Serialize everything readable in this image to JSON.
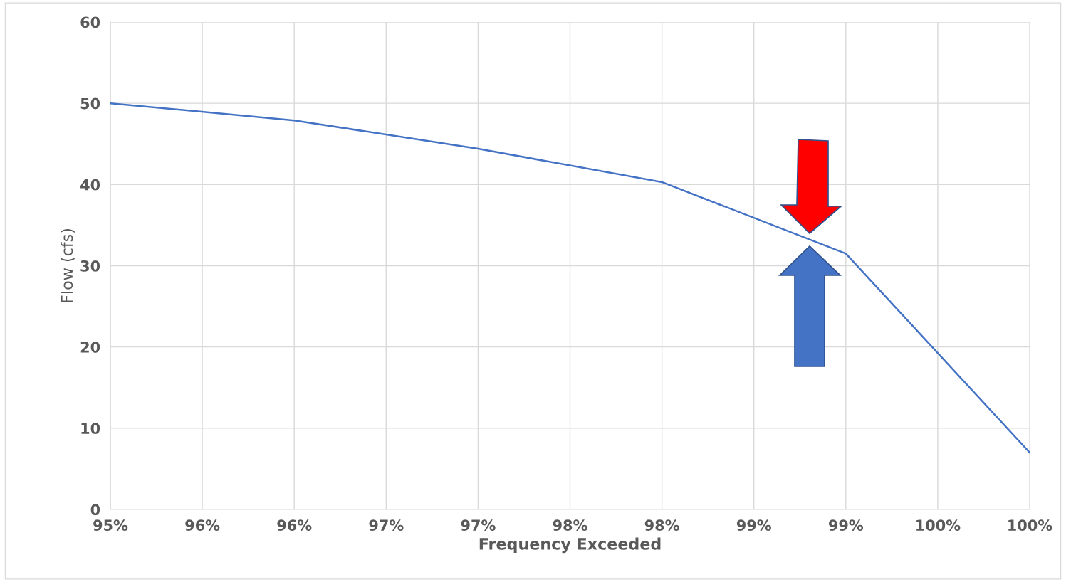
{
  "chart_data": {
    "type": "line",
    "xlabel": "Frequency Exceeded",
    "ylabel": "Flow (cfs)",
    "x": [
      95,
      96,
      97,
      98,
      99,
      100
    ],
    "series": [
      {
        "color": "#4472c4",
        "values": [
          50,
          47.9,
          44.4,
          40.3,
          31.5,
          7.0
        ]
      }
    ],
    "xlim": [
      95,
      100
    ],
    "xticks": [
      {
        "value": 95,
        "label": "95%"
      },
      {
        "value": 95.5,
        "label": "96%"
      },
      {
        "value": 96,
        "label": "96%"
      },
      {
        "value": 96.5,
        "label": "97%"
      },
      {
        "value": 97,
        "label": "97%"
      },
      {
        "value": 97.5,
        "label": "98%"
      },
      {
        "value": 98,
        "label": "98%"
      },
      {
        "value": 98.5,
        "label": "99%"
      },
      {
        "value": 99,
        "label": "99%"
      },
      {
        "value": 99.5,
        "label": "100%"
      },
      {
        "value": 100,
        "label": "100%"
      }
    ],
    "ylim": [
      0,
      60
    ],
    "yticks": [
      0,
      10,
      20,
      30,
      40,
      50,
      60
    ],
    "grid": true,
    "marker": "none",
    "line_style": "solid"
  }
}
